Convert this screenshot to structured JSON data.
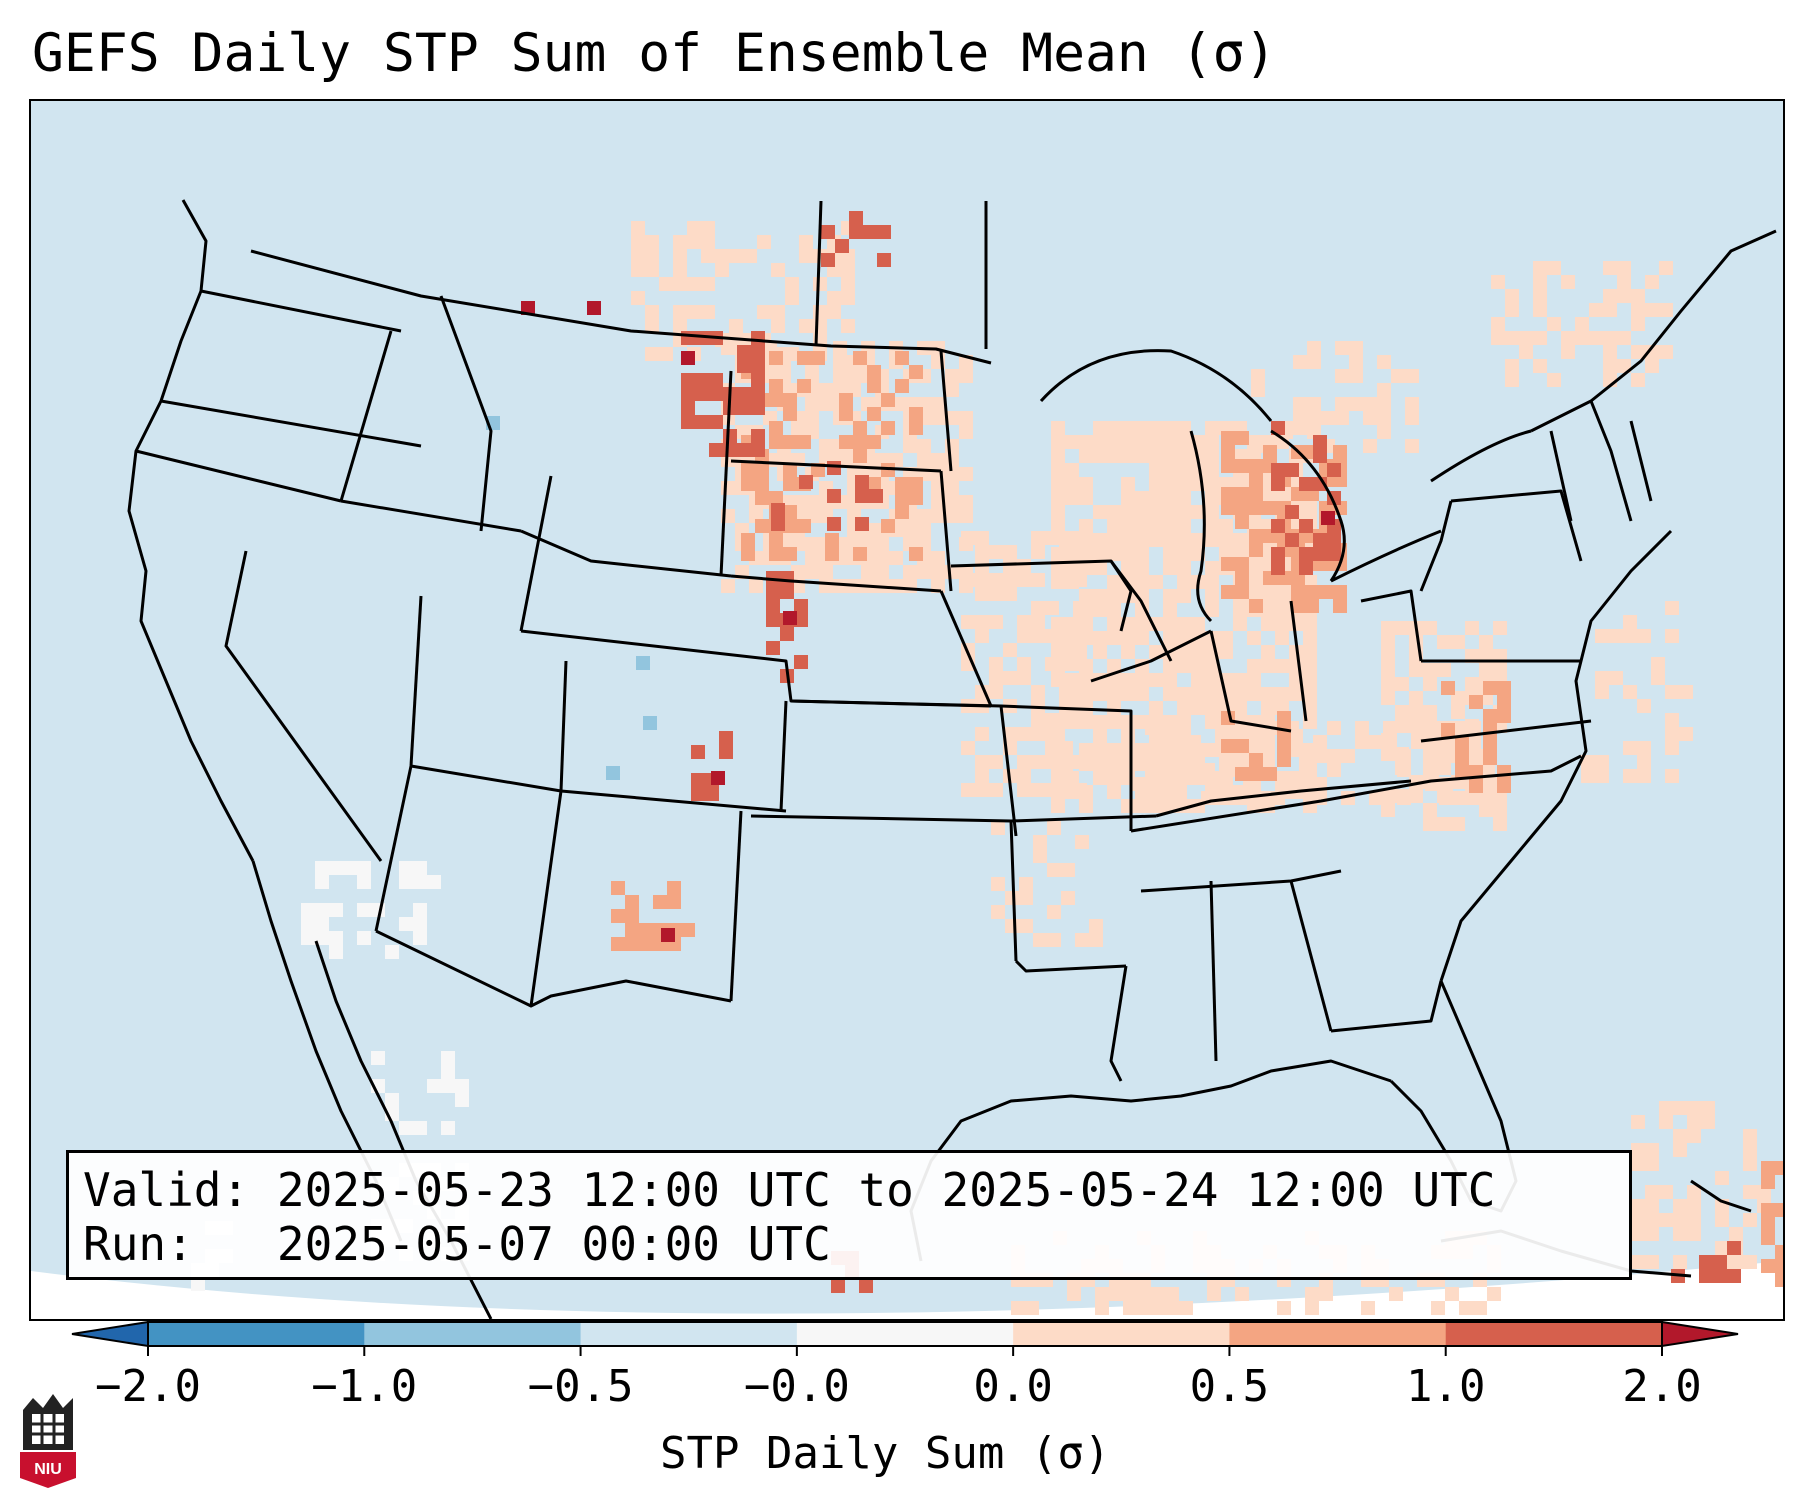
{
  "title": "GEFS Daily STP Sum of Ensemble Mean (σ)",
  "info": {
    "valid_label": "Valid:",
    "valid_value": "2025-05-23 12:00 UTC to 2025-05-24 12:00 UTC",
    "run_label": "Run:",
    "run_value": "2025-05-07 00:00 UTC"
  },
  "colorbar": {
    "label": "STP Daily Sum (σ)",
    "ticks": [
      "−2.0",
      "−1.0",
      "−0.5",
      "−0.0",
      "0.0",
      "0.5",
      "1.0",
      "2.0"
    ],
    "bins": [
      {
        "range": "-2.0 to -1.0",
        "color": "#4393c3"
      },
      {
        "range": "-1.0 to -0.5",
        "color": "#92c5de"
      },
      {
        "range": "-0.5 to 0.0",
        "color": "#d1e5f0"
      },
      {
        "range": "0.0 (neutral)",
        "color": "#f7f7f7"
      },
      {
        "range": "0.0 to 0.5",
        "color": "#fddbc7"
      },
      {
        "range": "0.5 to 1.0",
        "color": "#f4a582"
      },
      {
        "range": "1.0 to 2.0",
        "color": "#d6604d"
      },
      {
        "range": "> 2.0",
        "color": "#b2182b"
      }
    ],
    "under_color": "#2166ac",
    "over_color": "#b2182b"
  },
  "logo_text": "NIU",
  "colors": {
    "background_field": "#d1e5f0",
    "state_lines": "#000000"
  }
}
